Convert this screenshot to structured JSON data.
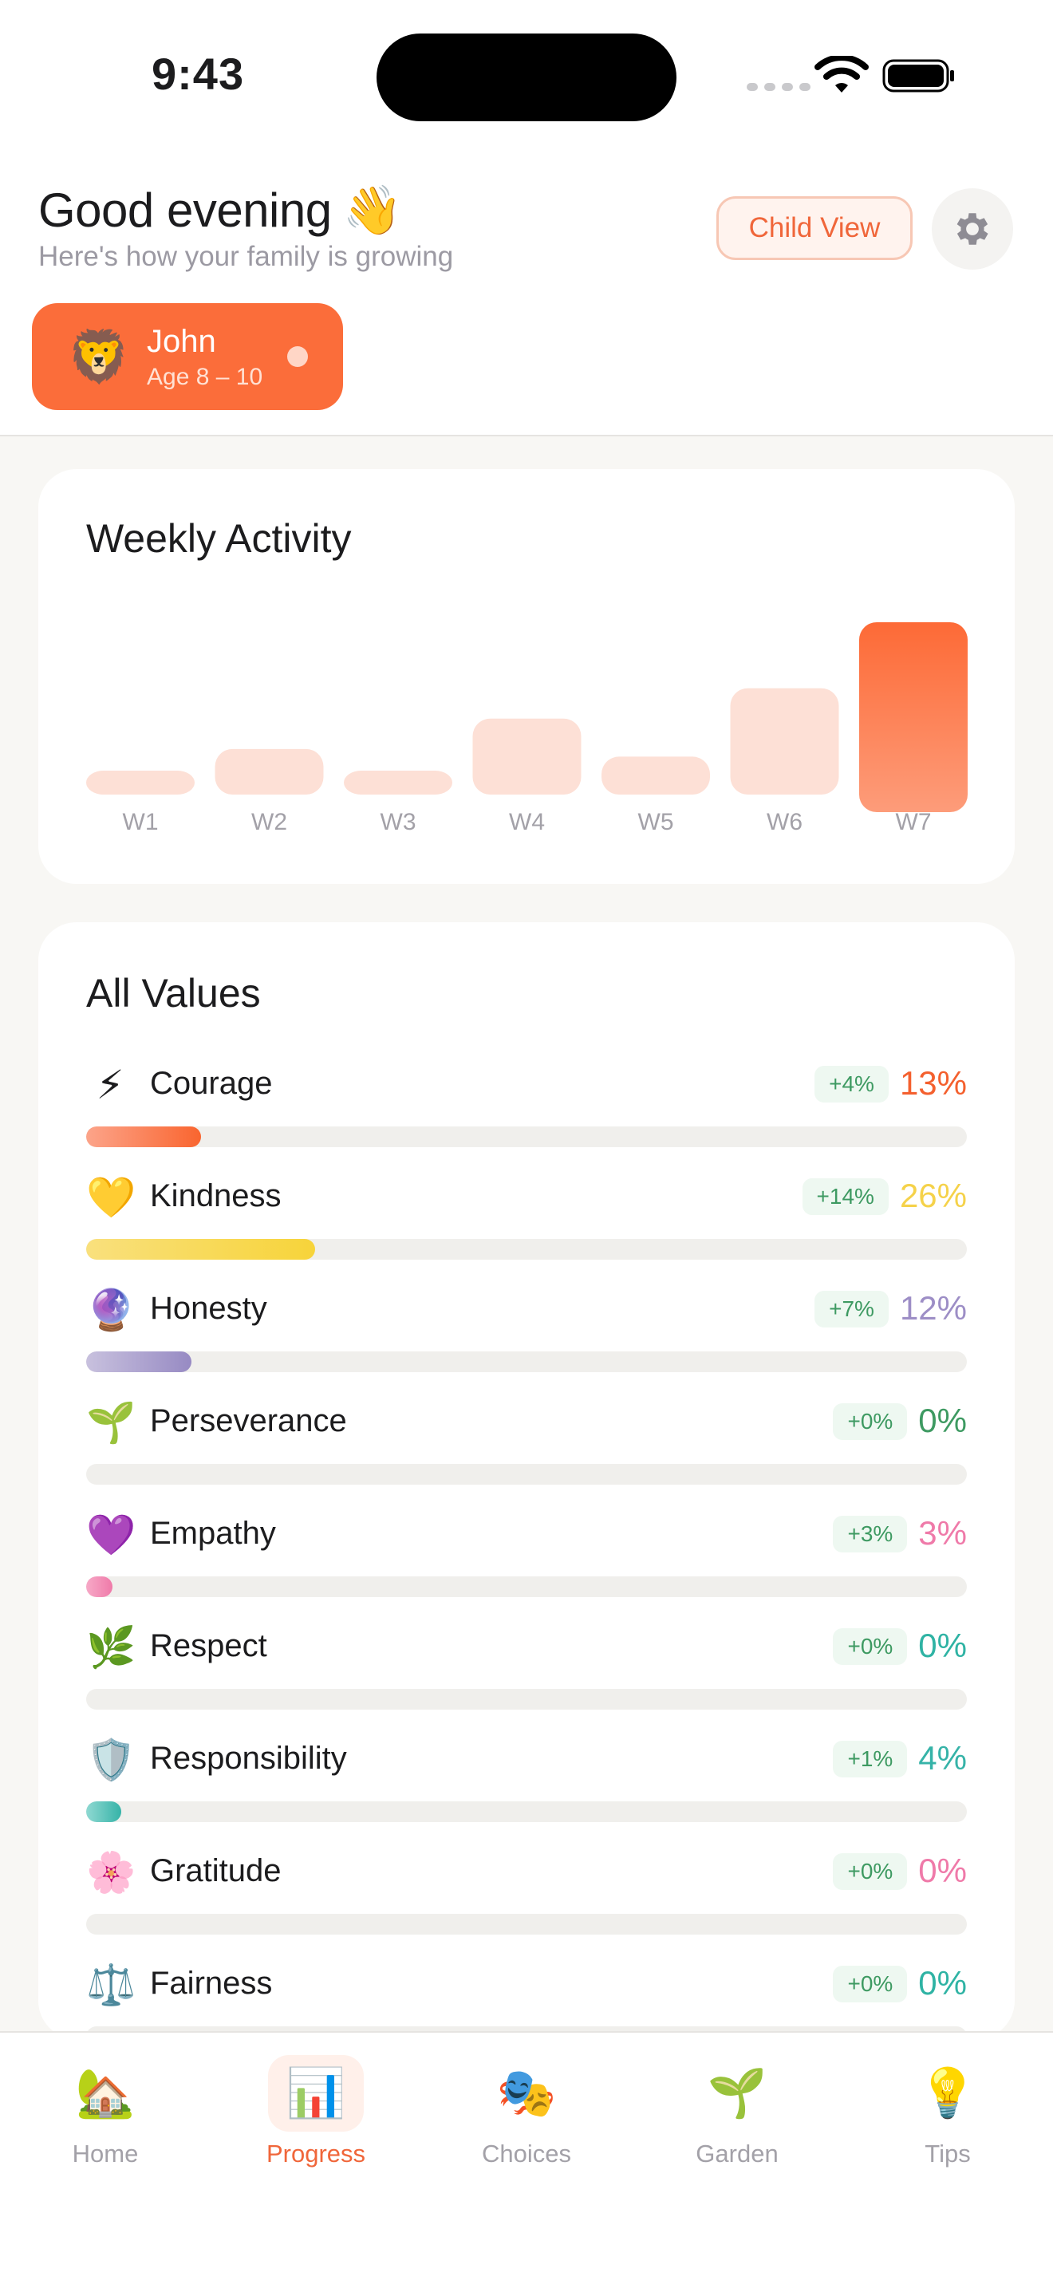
{
  "status": {
    "time": "9:43"
  },
  "header": {
    "greeting": "Good evening",
    "greeting_emoji": "👋",
    "subtitle": "Here's how your family is growing",
    "child_view_label": "Child View",
    "settings_icon": "gear-icon"
  },
  "profile": {
    "emoji": "🦁",
    "name": "John",
    "age": "Age 8 – 10"
  },
  "weekly": {
    "title": "Weekly Activity",
    "chart_data": {
      "type": "bar",
      "categories": [
        "W1",
        "W2",
        "W3",
        "W4",
        "W5",
        "W6",
        "W7"
      ],
      "values": [
        3,
        6,
        1.5,
        10,
        5,
        14,
        25
      ],
      "highlight_index": 6,
      "ylim": [
        0,
        25
      ]
    },
    "colors": {
      "bar": "#fde0d6",
      "highlight_top": "#fd6a36",
      "highlight_bottom": "#fd9c7a",
      "label": "#a3a1a8"
    }
  },
  "values": {
    "title": "All Values",
    "items": [
      {
        "icon": "⚡",
        "name": "Courage",
        "delta": "+4%",
        "percent": "13%",
        "level": 13,
        "color": "#f4602e",
        "fill_from": "#fca48a",
        "fill_to": "#f9652f"
      },
      {
        "icon": "💛",
        "name": "Kindness",
        "delta": "+14%",
        "percent": "26%",
        "level": 26,
        "color": "#f5d24a",
        "fill_from": "#f9e07d",
        "fill_to": "#f7d43a"
      },
      {
        "icon": "🔮",
        "name": "Honesty",
        "delta": "+7%",
        "percent": "12%",
        "level": 12,
        "color": "#9d8ec6",
        "fill_from": "#c8c1de",
        "fill_to": "#978ac3"
      },
      {
        "icon": "🌱",
        "name": "Perseverance",
        "delta": "+0%",
        "percent": "0%",
        "level": 0,
        "color": "#3e9a62",
        "fill_from": "#8fd0a5",
        "fill_to": "#3e9a62"
      },
      {
        "icon": "💜",
        "name": "Empathy",
        "delta": "+3%",
        "percent": "3%",
        "level": 3,
        "color": "#ef7aa9",
        "fill_from": "#f7a9c7",
        "fill_to": "#ef7aa9"
      },
      {
        "icon": "🌿",
        "name": "Respect",
        "delta": "+0%",
        "percent": "0%",
        "level": 0,
        "color": "#2fb3a4",
        "fill_from": "#8ad8ce",
        "fill_to": "#2fb3a4"
      },
      {
        "icon": "🛡️",
        "name": "Responsibility",
        "delta": "+1%",
        "percent": "4%",
        "level": 4,
        "color": "#36b3a8",
        "fill_from": "#8fd9d2",
        "fill_to": "#36b3a8"
      },
      {
        "icon": "🌸",
        "name": "Gratitude",
        "delta": "+0%",
        "percent": "0%",
        "level": 0,
        "color": "#ef7aa9",
        "fill_from": "#f7a9c7",
        "fill_to": "#ef7aa9"
      },
      {
        "icon": "⚖️",
        "name": "Fairness",
        "delta": "+0%",
        "percent": "0%",
        "level": 0,
        "color": "#2fb3a4",
        "fill_from": "#8ad8ce",
        "fill_to": "#2fb3a4"
      }
    ]
  },
  "tabs": [
    {
      "icon": "🏡",
      "label": "Home",
      "active": false
    },
    {
      "icon": "📊",
      "label": "Progress",
      "active": true
    },
    {
      "icon": "🎭",
      "label": "Choices",
      "active": false
    },
    {
      "icon": "🌱",
      "label": "Garden",
      "active": false
    },
    {
      "icon": "💡",
      "label": "Tips",
      "active": false
    }
  ]
}
